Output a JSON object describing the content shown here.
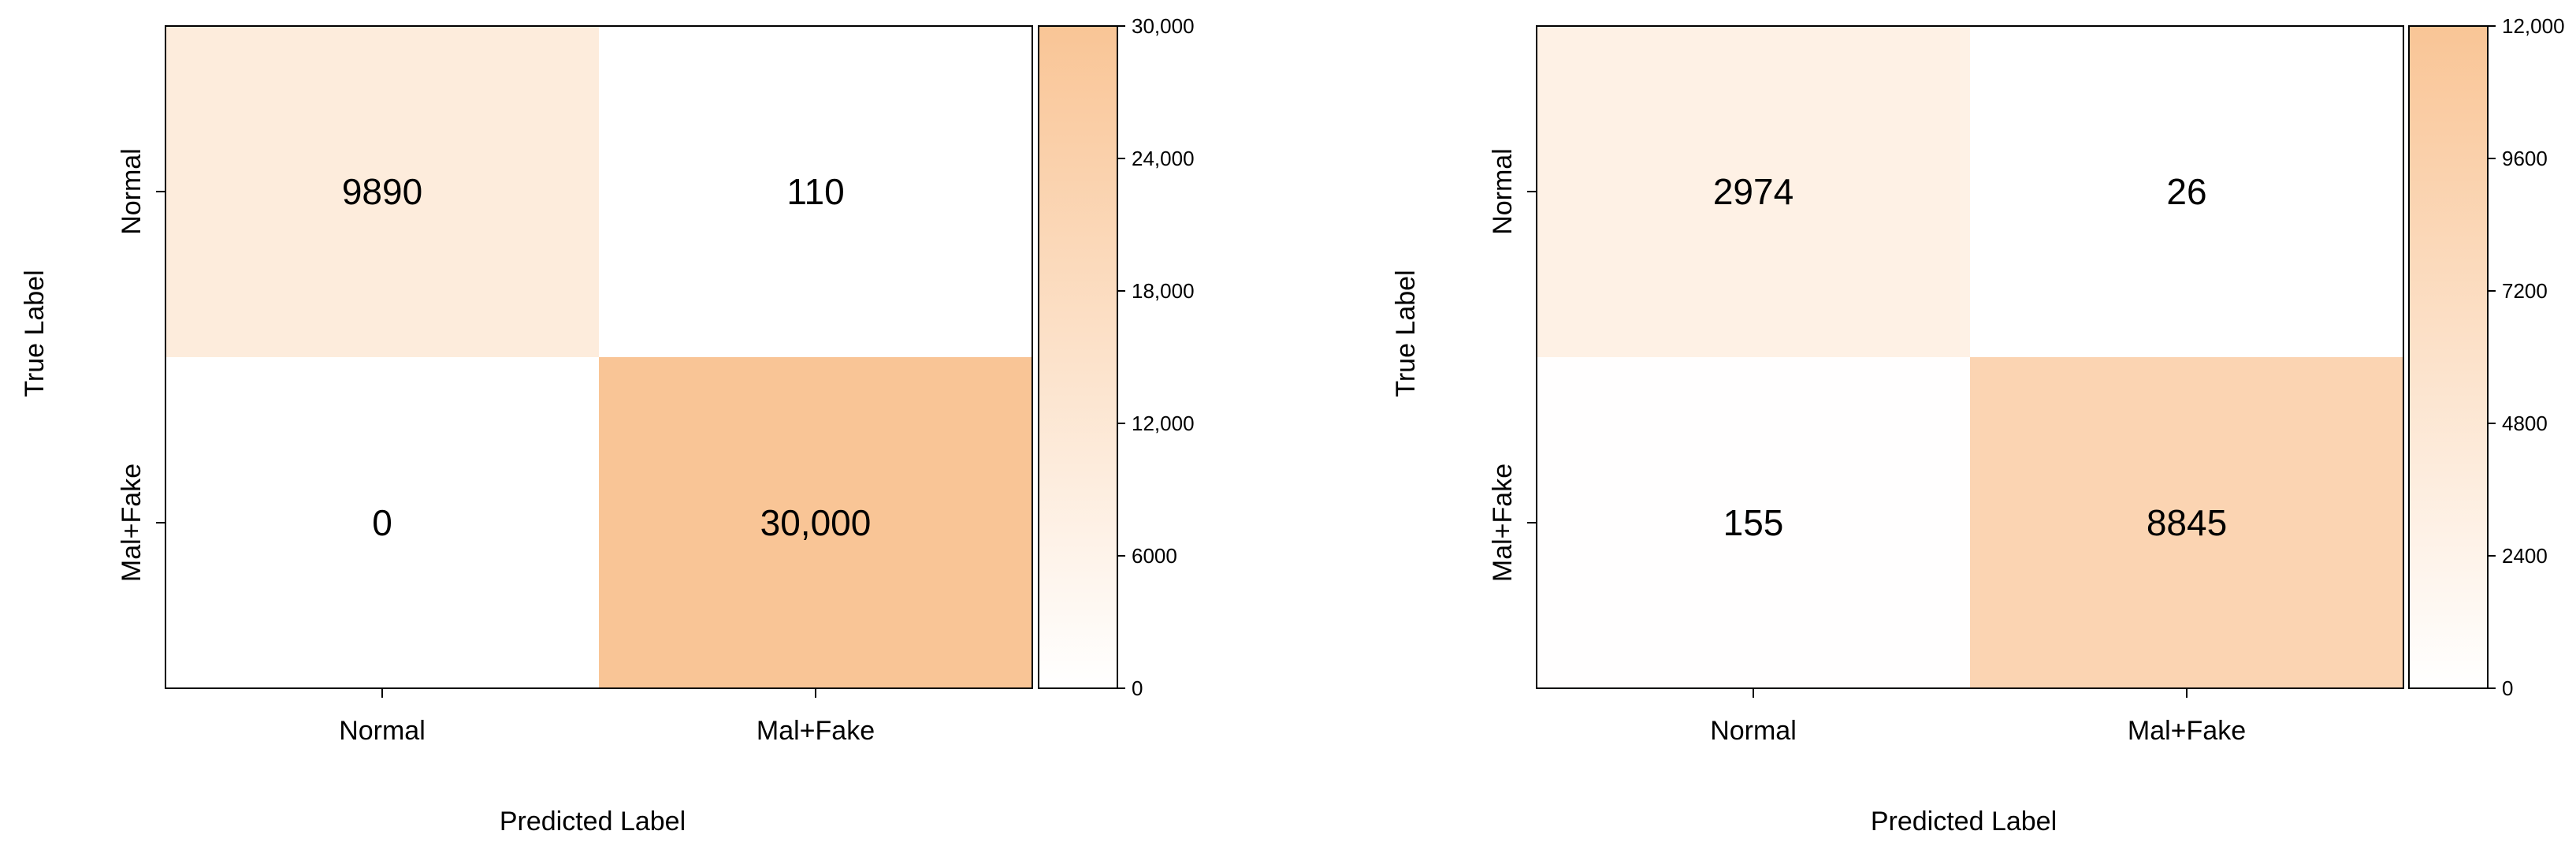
{
  "chart_data": [
    {
      "type": "heatmap",
      "x_categories": [
        "Normal",
        "Mal+Fake"
      ],
      "y_categories": [
        "Normal",
        "Mal+Fake"
      ],
      "values": [
        [
          9890,
          110
        ],
        [
          0,
          30000
        ]
      ],
      "cell_labels": [
        [
          "9890",
          "110"
        ],
        [
          "0",
          "30,000"
        ]
      ],
      "xlabel": "Predicted Label",
      "ylabel": "True Label",
      "colorbar": {
        "range": [
          0,
          30000
        ],
        "ticks": [
          0,
          6000,
          12000,
          18000,
          24000,
          30000
        ],
        "tick_labels": [
          "0",
          "6000",
          "12,000",
          "18,000",
          "24,000",
          "30,000"
        ]
      },
      "color_low": "#ffffff",
      "color_high": "#f9c596"
    },
    {
      "type": "heatmap",
      "x_categories": [
        "Normal",
        "Mal+Fake"
      ],
      "y_categories": [
        "Normal",
        "Mal+Fake"
      ],
      "values": [
        [
          2974,
          26
        ],
        [
          155,
          8845
        ]
      ],
      "cell_labels": [
        [
          "2974",
          "26"
        ],
        [
          "155",
          "8845"
        ]
      ],
      "xlabel": "Predicted Label",
      "ylabel": "True Label",
      "colorbar": {
        "range": [
          0,
          12000
        ],
        "ticks": [
          0,
          2400,
          4800,
          7200,
          9600,
          12000
        ],
        "tick_labels": [
          "0",
          "2400",
          "4800",
          "7200",
          "9600",
          "12,000"
        ]
      },
      "color_low": "#ffffff",
      "color_high": "#f9c596"
    }
  ]
}
